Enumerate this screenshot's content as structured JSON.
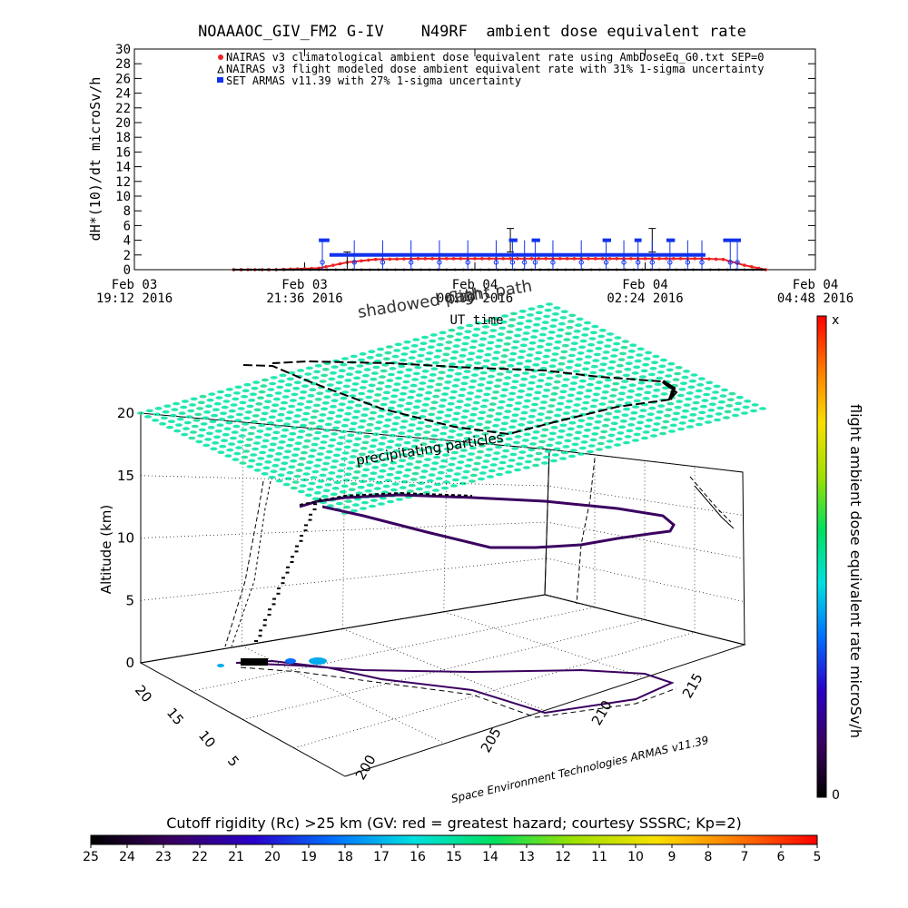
{
  "chart_data": [
    {
      "type": "scatter",
      "title": "NOAAAOC_GIV_FM2 G-IV    N49RF  ambient dose equivalent rate",
      "ylabel": "dH*(10)/dt microSv/h",
      "ylim": [
        0,
        30
      ],
      "yticks": [
        "0",
        "2",
        "4",
        "6",
        "8",
        "10",
        "12",
        "14",
        "16",
        "18",
        "20",
        "22",
        "24",
        "26",
        "28",
        "30"
      ],
      "x_ticks": [
        {
          "day": "Feb 03",
          "time": "19:12 2016"
        },
        {
          "day": "Feb 03",
          "time": "21:36 2016"
        },
        {
          "day": "Feb 04",
          "time": "00:00 2016"
        },
        {
          "day": "Feb 04",
          "time": "02:24 2016"
        },
        {
          "day": "Feb 04",
          "time": "04:48 2016"
        }
      ],
      "xlim_hours": [
        0,
        9.6
      ],
      "xlabel": "UT time",
      "legend": [
        {
          "text": "NAIRAS v3 climatological ambient dose equivalent rate using AmbDoseEq_G0.txt SEP=0",
          "symbol": "circle",
          "color": "#ee2222"
        },
        {
          "text": "NAIRAS v3 flight modeled dose ambient equivalent rate with 31% 1-sigma uncertainty",
          "symbol": "triangle",
          "color": "#000000"
        },
        {
          "text": "SET ARMAS v11.39 with 27% 1-sigma uncertainty",
          "symbol": "square",
          "color": "#1133ee"
        }
      ],
      "series": [
        {
          "name": "NAIRAS v3 climatological ambient dose equivalent rate using AmbDoseEq_G0.txt SEP=0",
          "color": "#ee2222",
          "x_hours": [
            1.4,
            2.0,
            2.6,
            3.0,
            3.4,
            4.0,
            5.0,
            6.0,
            7.0,
            8.0,
            8.3,
            8.6,
            8.9
          ],
          "values": [
            0,
            0,
            0.2,
            1.0,
            1.4,
            1.5,
            1.5,
            1.5,
            1.5,
            1.5,
            1.4,
            0.6,
            0
          ]
        },
        {
          "name": "NAIRAS v3 flight modeled dose ambient equivalent rate with 31% 1-sigma uncertainty",
          "color": "#000000",
          "x_hours": [
            1.4,
            2.5,
            3.5,
            4.5,
            5.5,
            6.5,
            7.5,
            8.9
          ],
          "values": [
            0,
            0,
            0,
            0,
            0,
            0,
            0,
            0
          ],
          "error_bar_points": [
            {
              "x_hours": 3.0,
              "value": 1.2,
              "error": 1.2
            },
            {
              "x_hours": 5.3,
              "value": 4.0,
              "error": 1.6
            },
            {
              "x_hours": 7.3,
              "value": 4.0,
              "error": 1.6
            }
          ]
        },
        {
          "name": "SET ARMAS v11.39 with 27% 1-sigma uncertainty",
          "color": "#1133ee",
          "segments": [
            {
              "x0": 2.75,
              "x1": 8.05,
              "value": 2.0
            },
            {
              "x0": 2.6,
              "x1": 2.75,
              "value": 4.0
            },
            {
              "x0": 5.28,
              "x1": 5.4,
              "value": 4.0
            },
            {
              "x0": 5.6,
              "x1": 5.72,
              "value": 4.0
            },
            {
              "x0": 6.6,
              "x1": 6.72,
              "value": 4.0
            },
            {
              "x0": 7.05,
              "x1": 7.15,
              "value": 4.0
            },
            {
              "x0": 7.5,
              "x1": 7.62,
              "value": 4.0
            },
            {
              "x0": 8.3,
              "x1": 8.55,
              "value": 4.0
            }
          ],
          "error_bars_at_hours": [
            2.65,
            3.1,
            3.5,
            3.9,
            4.3,
            4.7,
            5.1,
            5.33,
            5.5,
            5.65,
            5.9,
            6.3,
            6.65,
            6.9,
            7.1,
            7.3,
            7.55,
            7.8,
            8.0,
            8.4,
            8.5
          ]
        }
      ]
    },
    {
      "type": "3d-trajectory",
      "zlabel": "Altitude (km)",
      "zticks": [
        "0",
        "5",
        "10",
        "15",
        "20"
      ],
      "zlim": [
        0,
        20
      ],
      "xticks": [
        "200",
        "205",
        "210",
        "215"
      ],
      "yticks": [
        "5",
        "10",
        "15",
        "20"
      ],
      "annotations": [
        "precipitating particles",
        "shadowed path",
        "flight path",
        "UT time"
      ],
      "credit": "Space Environment Technologies ARMAS v11.39",
      "flight_altitude_km": 12.5,
      "particle_layer_altitude_km": 20
    }
  ],
  "colorbar_right": {
    "label": "flight ambient dose equivalent rate microSv/h",
    "top_label": "x",
    "bottom_label": "0",
    "colors": [
      "#000000",
      "#3a0060",
      "#2a00c8",
      "#0070ff",
      "#00e0e0",
      "#00e060",
      "#a0e000",
      "#f8e000",
      "#ff7a00",
      "#ff0000"
    ]
  },
  "colorbar_bottom": {
    "title": "Cutoff rigidity (Rc) >25 km (GV: red = greatest hazard; courtesy SSSRC; Kp=2)",
    "labels": [
      "25",
      "24",
      "23",
      "22",
      "21",
      "20",
      "19",
      "18",
      "17",
      "16",
      "15",
      "14",
      "13",
      "12",
      "11",
      "10",
      "9",
      "8",
      "7",
      "6",
      "5"
    ],
    "colors": [
      "#000000",
      "#3a0060",
      "#2a00c8",
      "#0070ff",
      "#00e0e0",
      "#00e060",
      "#a0e000",
      "#f8e000",
      "#ff7a00",
      "#ff0000"
    ]
  }
}
